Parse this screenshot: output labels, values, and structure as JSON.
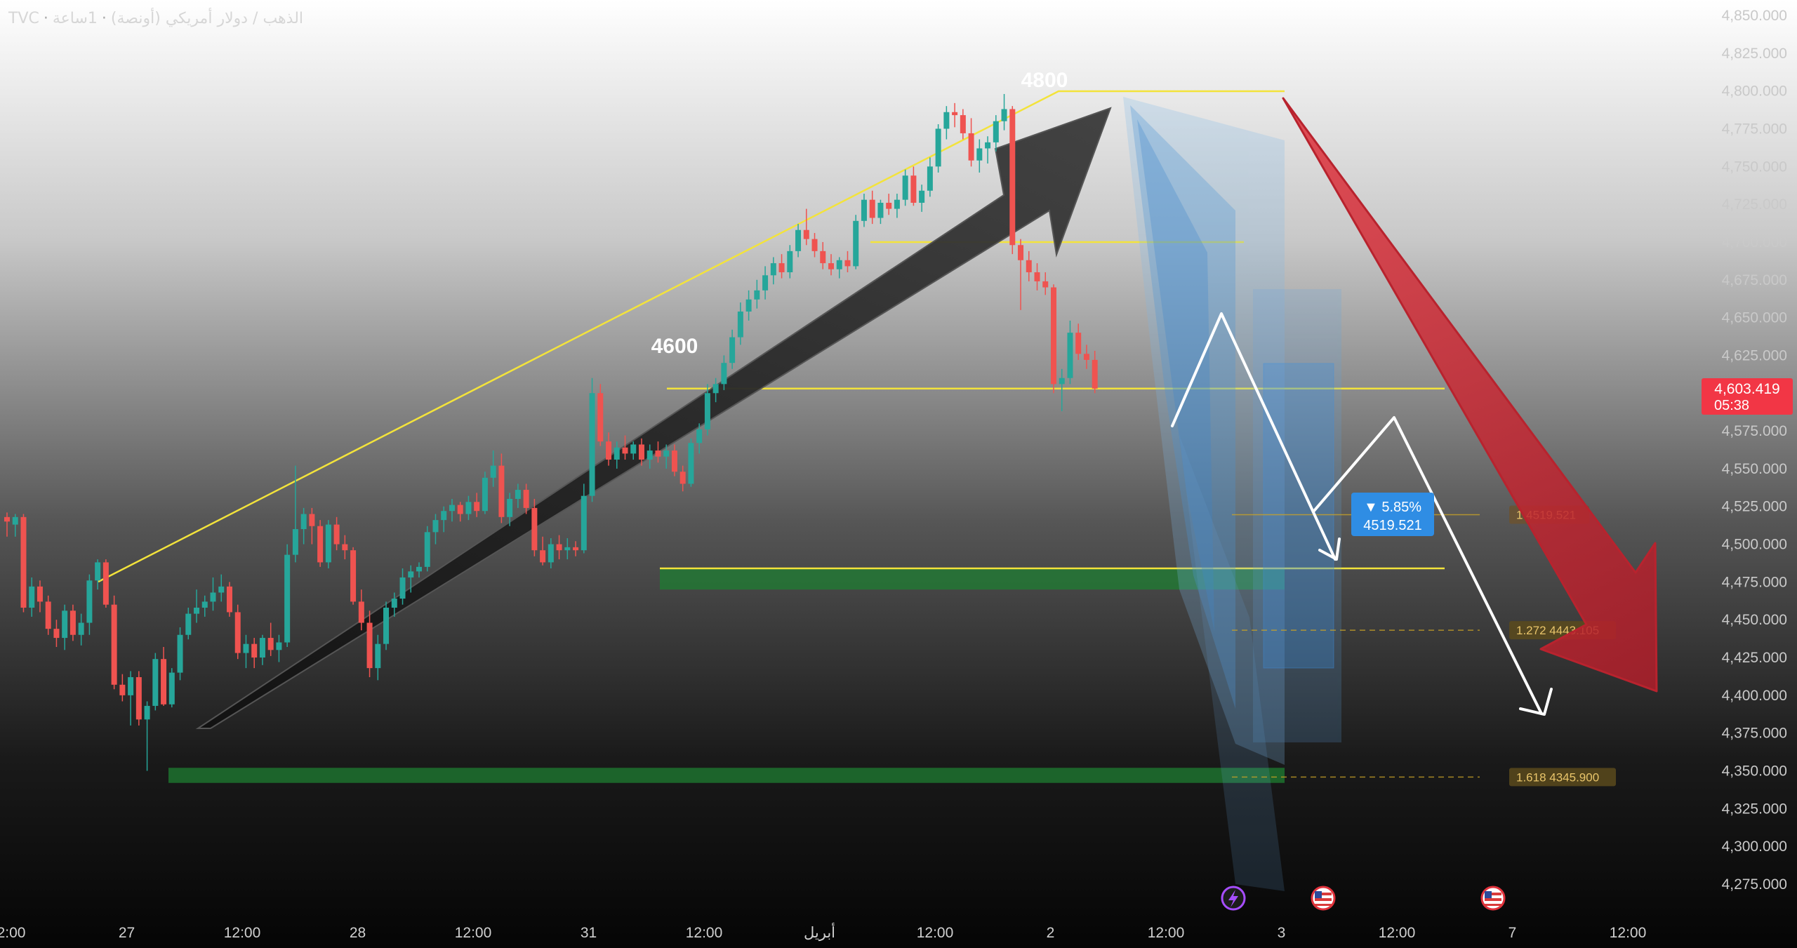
{
  "header": {
    "exchange": "TVC",
    "separator": "·",
    "instrument": "الذهب / دولار أمريكي (أونصة)",
    "interval": "1ساعة"
  },
  "price": {
    "current": "4,603.419",
    "countdown": "05:38"
  },
  "annotations": {
    "label_4800": "4800",
    "label_4600": "4600"
  },
  "measure": {
    "percent": "▼ 5.85%",
    "value": "4519.521"
  },
  "fib_labels": [
    {
      "ratio": "1",
      "value": "4519.521",
      "price": 4519.521
    },
    {
      "ratio": "1.272",
      "value": "4443.105",
      "price": 4443.105
    },
    {
      "ratio": "1.618",
      "value": "4345.900",
      "price": 4345.9
    }
  ],
  "event_icons": [
    "lightning-icon",
    "us-flag-icon",
    "us-flag-icon"
  ],
  "colors": {
    "up": "#26a69a",
    "down": "#ef5350",
    "line_yellow": "#f3e33b",
    "price_tag": "#f23645",
    "measure_tag": "#2f8de4",
    "fib_gold": "#c9a227",
    "support_green": "#1e7d32"
  },
  "chart_data": {
    "type": "candlestick",
    "title": "",
    "y_ticks": [
      "4,850.000",
      "4,825.000",
      "4,800.000",
      "4,775.000",
      "4,750.000",
      "4,725.000",
      "4,700.000",
      "4,675.000",
      "4,650.000",
      "4,625.000",
      "4,600.000",
      "4,575.000",
      "4,550.000",
      "4,525.000",
      "4,500.000",
      "4,475.000",
      "4,450.000",
      "4,425.000",
      "4,400.000",
      "4,375.000",
      "4,350.000",
      "4,325.000",
      "4,300.000",
      "4,275.000"
    ],
    "x_ticks": [
      "2:00",
      "27",
      "12:00",
      "28",
      "12:00",
      "31",
      "12:00",
      "أبريل",
      "12:00",
      "2",
      "12:00",
      "3",
      "12:00",
      "7",
      "12:00"
    ],
    "ylim": [
      4260,
      4862
    ],
    "horizontal_levels": [
      4800,
      4700,
      4603,
      4484
    ],
    "support_zones": [
      [
        4470,
        4484
      ],
      [
        4342,
        4352
      ]
    ],
    "candles": [
      {
        "o": 4518,
        "h": 4521,
        "l": 4505,
        "c": 4515
      },
      {
        "o": 4513,
        "h": 4520,
        "l": 4505,
        "c": 4518
      },
      {
        "o": 4518,
        "h": 4520,
        "l": 4455,
        "c": 4458
      },
      {
        "o": 4458,
        "h": 4478,
        "l": 4452,
        "c": 4472
      },
      {
        "o": 4472,
        "h": 4476,
        "l": 4455,
        "c": 4462
      },
      {
        "o": 4462,
        "h": 4466,
        "l": 4440,
        "c": 4444
      },
      {
        "o": 4444,
        "h": 4450,
        "l": 4432,
        "c": 4438
      },
      {
        "o": 4438,
        "h": 4460,
        "l": 4430,
        "c": 4456
      },
      {
        "o": 4456,
        "h": 4460,
        "l": 4436,
        "c": 4440
      },
      {
        "o": 4440,
        "h": 4454,
        "l": 4433,
        "c": 4448
      },
      {
        "o": 4448,
        "h": 4480,
        "l": 4440,
        "c": 4476
      },
      {
        "o": 4476,
        "h": 4490,
        "l": 4470,
        "c": 4488
      },
      {
        "o": 4488,
        "h": 4490,
        "l": 4458,
        "c": 4460
      },
      {
        "o": 4460,
        "h": 4466,
        "l": 4404,
        "c": 4407
      },
      {
        "o": 4407,
        "h": 4414,
        "l": 4396,
        "c": 4400
      },
      {
        "o": 4400,
        "h": 4416,
        "l": 4380,
        "c": 4412
      },
      {
        "o": 4412,
        "h": 4416,
        "l": 4380,
        "c": 4384
      },
      {
        "o": 4384,
        "h": 4396,
        "l": 4350,
        "c": 4393
      },
      {
        "o": 4393,
        "h": 4428,
        "l": 4390,
        "c": 4424
      },
      {
        "o": 4424,
        "h": 4432,
        "l": 4393,
        "c": 4394
      },
      {
        "o": 4394,
        "h": 4418,
        "l": 4392,
        "c": 4415
      },
      {
        "o": 4415,
        "h": 4445,
        "l": 4410,
        "c": 4440
      },
      {
        "o": 4440,
        "h": 4458,
        "l": 4437,
        "c": 4454
      },
      {
        "o": 4454,
        "h": 4470,
        "l": 4448,
        "c": 4458
      },
      {
        "o": 4458,
        "h": 4466,
        "l": 4452,
        "c": 4462
      },
      {
        "o": 4462,
        "h": 4478,
        "l": 4456,
        "c": 4468
      },
      {
        "o": 4468,
        "h": 4480,
        "l": 4462,
        "c": 4472
      },
      {
        "o": 4472,
        "h": 4475,
        "l": 4452,
        "c": 4455
      },
      {
        "o": 4455,
        "h": 4460,
        "l": 4424,
        "c": 4428
      },
      {
        "o": 4428,
        "h": 4440,
        "l": 4418,
        "c": 4434
      },
      {
        "o": 4434,
        "h": 4438,
        "l": 4418,
        "c": 4425
      },
      {
        "o": 4425,
        "h": 4440,
        "l": 4420,
        "c": 4438
      },
      {
        "o": 4438,
        "h": 4448,
        "l": 4426,
        "c": 4430
      },
      {
        "o": 4430,
        "h": 4440,
        "l": 4422,
        "c": 4435
      },
      {
        "o": 4435,
        "h": 4500,
        "l": 4432,
        "c": 4493
      },
      {
        "o": 4493,
        "h": 4552,
        "l": 4488,
        "c": 4510
      },
      {
        "o": 4510,
        "h": 4524,
        "l": 4500,
        "c": 4520
      },
      {
        "o": 4520,
        "h": 4524,
        "l": 4500,
        "c": 4512
      },
      {
        "o": 4512,
        "h": 4516,
        "l": 4485,
        "c": 4488
      },
      {
        "o": 4488,
        "h": 4516,
        "l": 4484,
        "c": 4513
      },
      {
        "o": 4513,
        "h": 4518,
        "l": 4496,
        "c": 4500
      },
      {
        "o": 4500,
        "h": 4506,
        "l": 4490,
        "c": 4496
      },
      {
        "o": 4496,
        "h": 4498,
        "l": 4460,
        "c": 4462
      },
      {
        "o": 4462,
        "h": 4470,
        "l": 4443,
        "c": 4448
      },
      {
        "o": 4448,
        "h": 4456,
        "l": 4412,
        "c": 4418
      },
      {
        "o": 4418,
        "h": 4440,
        "l": 4410,
        "c": 4434
      },
      {
        "o": 4434,
        "h": 4462,
        "l": 4430,
        "c": 4458
      },
      {
        "o": 4458,
        "h": 4468,
        "l": 4452,
        "c": 4464
      },
      {
        "o": 4464,
        "h": 4484,
        "l": 4460,
        "c": 4478
      },
      {
        "o": 4478,
        "h": 4486,
        "l": 4468,
        "c": 4482
      },
      {
        "o": 4482,
        "h": 4488,
        "l": 4478,
        "c": 4485
      },
      {
        "o": 4485,
        "h": 4512,
        "l": 4482,
        "c": 4508
      },
      {
        "o": 4508,
        "h": 4520,
        "l": 4500,
        "c": 4516
      },
      {
        "o": 4516,
        "h": 4525,
        "l": 4508,
        "c": 4522
      },
      {
        "o": 4522,
        "h": 4530,
        "l": 4515,
        "c": 4526
      },
      {
        "o": 4526,
        "h": 4528,
        "l": 4515,
        "c": 4520
      },
      {
        "o": 4520,
        "h": 4532,
        "l": 4516,
        "c": 4528
      },
      {
        "o": 4528,
        "h": 4534,
        "l": 4518,
        "c": 4522
      },
      {
        "o": 4522,
        "h": 4548,
        "l": 4520,
        "c": 4544
      },
      {
        "o": 4544,
        "h": 4562,
        "l": 4538,
        "c": 4552
      },
      {
        "o": 4552,
        "h": 4560,
        "l": 4514,
        "c": 4518
      },
      {
        "o": 4518,
        "h": 4534,
        "l": 4512,
        "c": 4530
      },
      {
        "o": 4530,
        "h": 4540,
        "l": 4524,
        "c": 4536
      },
      {
        "o": 4536,
        "h": 4540,
        "l": 4520,
        "c": 4524
      },
      {
        "o": 4524,
        "h": 4530,
        "l": 4492,
        "c": 4496
      },
      {
        "o": 4496,
        "h": 4505,
        "l": 4486,
        "c": 4488
      },
      {
        "o": 4488,
        "h": 4504,
        "l": 4484,
        "c": 4500
      },
      {
        "o": 4500,
        "h": 4506,
        "l": 4490,
        "c": 4496
      },
      {
        "o": 4496,
        "h": 4504,
        "l": 4490,
        "c": 4498
      },
      {
        "o": 4498,
        "h": 4502,
        "l": 4492,
        "c": 4496
      },
      {
        "o": 4496,
        "h": 4540,
        "l": 4494,
        "c": 4532
      },
      {
        "o": 4532,
        "h": 4610,
        "l": 4528,
        "c": 4600
      },
      {
        "o": 4600,
        "h": 4606,
        "l": 4565,
        "c": 4568
      },
      {
        "o": 4568,
        "h": 4574,
        "l": 4552,
        "c": 4556
      },
      {
        "o": 4556,
        "h": 4568,
        "l": 4550,
        "c": 4564
      },
      {
        "o": 4564,
        "h": 4572,
        "l": 4556,
        "c": 4560
      },
      {
        "o": 4560,
        "h": 4568,
        "l": 4556,
        "c": 4566
      },
      {
        "o": 4566,
        "h": 4570,
        "l": 4552,
        "c": 4556
      },
      {
        "o": 4556,
        "h": 4566,
        "l": 4550,
        "c": 4562
      },
      {
        "o": 4562,
        "h": 4568,
        "l": 4554,
        "c": 4558
      },
      {
        "o": 4558,
        "h": 4566,
        "l": 4550,
        "c": 4562
      },
      {
        "o": 4562,
        "h": 4566,
        "l": 4545,
        "c": 4548
      },
      {
        "o": 4548,
        "h": 4552,
        "l": 4535,
        "c": 4540
      },
      {
        "o": 4540,
        "h": 4570,
        "l": 4538,
        "c": 4567
      },
      {
        "o": 4567,
        "h": 4580,
        "l": 4560,
        "c": 4576
      },
      {
        "o": 4576,
        "h": 4606,
        "l": 4572,
        "c": 4600
      },
      {
        "o": 4600,
        "h": 4610,
        "l": 4594,
        "c": 4606
      },
      {
        "o": 4606,
        "h": 4625,
        "l": 4602,
        "c": 4620
      },
      {
        "o": 4620,
        "h": 4642,
        "l": 4616,
        "c": 4637
      },
      {
        "o": 4637,
        "h": 4660,
        "l": 4632,
        "c": 4654
      },
      {
        "o": 4654,
        "h": 4668,
        "l": 4648,
        "c": 4662
      },
      {
        "o": 4662,
        "h": 4675,
        "l": 4656,
        "c": 4668
      },
      {
        "o": 4668,
        "h": 4684,
        "l": 4662,
        "c": 4678
      },
      {
        "o": 4678,
        "h": 4690,
        "l": 4672,
        "c": 4686
      },
      {
        "o": 4686,
        "h": 4692,
        "l": 4676,
        "c": 4680
      },
      {
        "o": 4680,
        "h": 4698,
        "l": 4676,
        "c": 4694
      },
      {
        "o": 4694,
        "h": 4712,
        "l": 4690,
        "c": 4708
      },
      {
        "o": 4708,
        "h": 4722,
        "l": 4698,
        "c": 4702
      },
      {
        "o": 4702,
        "h": 4706,
        "l": 4690,
        "c": 4694
      },
      {
        "o": 4694,
        "h": 4700,
        "l": 4682,
        "c": 4686
      },
      {
        "o": 4686,
        "h": 4692,
        "l": 4678,
        "c": 4682
      },
      {
        "o": 4682,
        "h": 4690,
        "l": 4676,
        "c": 4688
      },
      {
        "o": 4688,
        "h": 4694,
        "l": 4680,
        "c": 4684
      },
      {
        "o": 4684,
        "h": 4718,
        "l": 4682,
        "c": 4714
      },
      {
        "o": 4714,
        "h": 4732,
        "l": 4710,
        "c": 4728
      },
      {
        "o": 4728,
        "h": 4734,
        "l": 4712,
        "c": 4716
      },
      {
        "o": 4716,
        "h": 4728,
        "l": 4712,
        "c": 4726
      },
      {
        "o": 4726,
        "h": 4732,
        "l": 4718,
        "c": 4722
      },
      {
        "o": 4722,
        "h": 4732,
        "l": 4716,
        "c": 4728
      },
      {
        "o": 4728,
        "h": 4748,
        "l": 4724,
        "c": 4744
      },
      {
        "o": 4744,
        "h": 4750,
        "l": 4724,
        "c": 4726
      },
      {
        "o": 4726,
        "h": 4738,
        "l": 4720,
        "c": 4734
      },
      {
        "o": 4734,
        "h": 4756,
        "l": 4730,
        "c": 4750
      },
      {
        "o": 4750,
        "h": 4778,
        "l": 4746,
        "c": 4775
      },
      {
        "o": 4775,
        "h": 4790,
        "l": 4768,
        "c": 4786
      },
      {
        "o": 4786,
        "h": 4792,
        "l": 4776,
        "c": 4784
      },
      {
        "o": 4784,
        "h": 4788,
        "l": 4768,
        "c": 4772
      },
      {
        "o": 4772,
        "h": 4782,
        "l": 4750,
        "c": 4754
      },
      {
        "o": 4754,
        "h": 4768,
        "l": 4746,
        "c": 4762
      },
      {
        "o": 4762,
        "h": 4770,
        "l": 4752,
        "c": 4766
      },
      {
        "o": 4766,
        "h": 4784,
        "l": 4760,
        "c": 4780
      },
      {
        "o": 4780,
        "h": 4798,
        "l": 4774,
        "c": 4788
      },
      {
        "o": 4788,
        "h": 4790,
        "l": 4692,
        "c": 4698
      },
      {
        "o": 4698,
        "h": 4702,
        "l": 4655,
        "c": 4688
      },
      {
        "o": 4688,
        "h": 4694,
        "l": 4674,
        "c": 4680
      },
      {
        "o": 4680,
        "h": 4686,
        "l": 4668,
        "c": 4674
      },
      {
        "o": 4674,
        "h": 4680,
        "l": 4665,
        "c": 4670
      },
      {
        "o": 4670,
        "h": 4672,
        "l": 4600,
        "c": 4606
      },
      {
        "o": 4606,
        "h": 4616,
        "l": 4588,
        "c": 4610
      },
      {
        "o": 4610,
        "h": 4648,
        "l": 4606,
        "c": 4640
      },
      {
        "o": 4640,
        "h": 4646,
        "l": 4622,
        "c": 4626
      },
      {
        "o": 4626,
        "h": 4632,
        "l": 4616,
        "c": 4622
      },
      {
        "o": 4622,
        "h": 4628,
        "l": 4600,
        "c": 4603
      }
    ]
  }
}
